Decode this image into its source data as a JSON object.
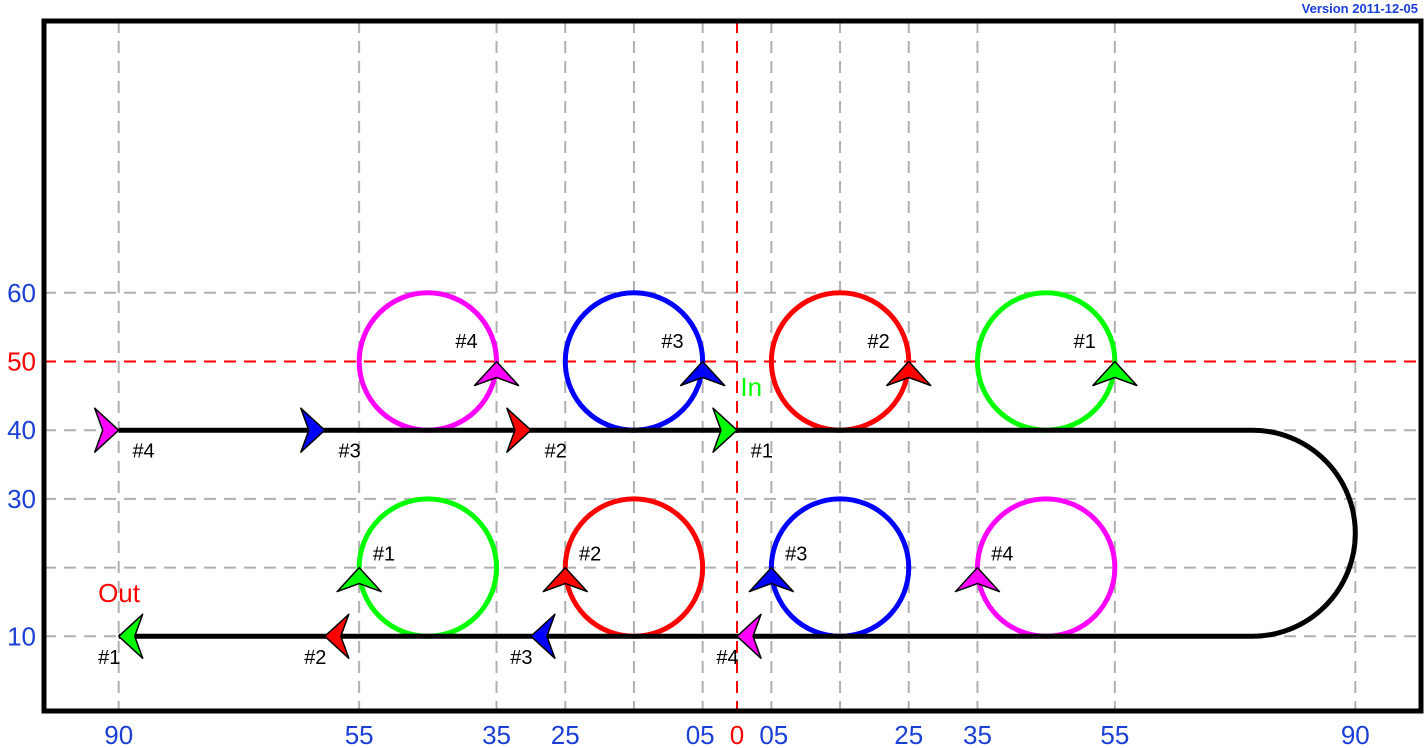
{
  "version_label": "Version 2011-12-05",
  "colors": {
    "axis_blue": "#1a3fd6",
    "red": "#ff0000",
    "green": "#00ff00",
    "blue": "#0000ff",
    "magenta": "#ff00ff",
    "grid": "#b0b0b0",
    "path": "#000000"
  },
  "x_ticks": [
    {
      "label": "90",
      "x": -90,
      "color": "axis_blue"
    },
    {
      "label": "55",
      "x": -55,
      "color": "axis_blue"
    },
    {
      "label": "35",
      "x": -35,
      "color": "axis_blue"
    },
    {
      "label": "25",
      "x": -25,
      "color": "axis_blue"
    },
    {
      "label": "05",
      "x": -5,
      "color": "axis_blue"
    },
    {
      "label": "0",
      "x": 0,
      "color": "red"
    },
    {
      "label": "05",
      "x": 5,
      "color": "axis_blue"
    },
    {
      "label": "25",
      "x": 25,
      "color": "axis_blue"
    },
    {
      "label": "35",
      "x": 35,
      "color": "axis_blue"
    },
    {
      "label": "55",
      "x": 55,
      "color": "axis_blue"
    },
    {
      "label": "90",
      "x": 90,
      "color": "axis_blue"
    }
  ],
  "y_ticks": [
    {
      "label": "60",
      "y": 60,
      "color": "axis_blue"
    },
    {
      "label": "50",
      "y": 50,
      "color": "red"
    },
    {
      "label": "40",
      "y": 40,
      "color": "axis_blue"
    },
    {
      "label": "30",
      "y": 30,
      "color": "axis_blue"
    },
    {
      "label": "10",
      "y": 10,
      "color": "axis_blue"
    }
  ],
  "extra_grid_x": [
    -15,
    15
  ],
  "extra_grid_y": [
    20
  ],
  "center_lines": {
    "x": 0,
    "y": 50
  },
  "path": {
    "upper_y": 40,
    "lower_y": 10,
    "x_start": -90,
    "turn_x": 75,
    "turn_center_y": 25,
    "turn_radius": 15
  },
  "circles": [
    {
      "cx": -45,
      "cy": 50,
      "r": 10,
      "color": "magenta"
    },
    {
      "cx": -15,
      "cy": 50,
      "r": 10,
      "color": "blue"
    },
    {
      "cx": 15,
      "cy": 50,
      "r": 10,
      "color": "red"
    },
    {
      "cx": 45,
      "cy": 50,
      "r": 10,
      "color": "green"
    },
    {
      "cx": -45,
      "cy": 20,
      "r": 10,
      "color": "green"
    },
    {
      "cx": -15,
      "cy": 20,
      "r": 10,
      "color": "red"
    },
    {
      "cx": 15,
      "cy": 20,
      "r": 10,
      "color": "blue"
    },
    {
      "cx": 45,
      "cy": 20,
      "r": 10,
      "color": "magenta"
    }
  ],
  "markers": [
    {
      "id": "upper-4",
      "x": -90,
      "y": 40,
      "dir": "right",
      "color": "magenta",
      "label": "#4",
      "lx": -88,
      "ly": 36
    },
    {
      "id": "upper-3",
      "x": -60,
      "y": 40,
      "dir": "right",
      "color": "blue",
      "label": "#3",
      "lx": -58,
      "ly": 36
    },
    {
      "id": "upper-2",
      "x": -30,
      "y": 40,
      "dir": "right",
      "color": "red",
      "label": "#2",
      "lx": -28,
      "ly": 36
    },
    {
      "id": "upper-1",
      "x": 0,
      "y": 40,
      "dir": "right",
      "color": "green",
      "label": "#1",
      "lx": 2,
      "ly": 36
    },
    {
      "id": "lower-1",
      "x": -90,
      "y": 10,
      "dir": "left",
      "color": "green",
      "label": "#1",
      "lx": -93,
      "ly": 6
    },
    {
      "id": "lower-2",
      "x": -60,
      "y": 10,
      "dir": "left",
      "color": "red",
      "label": "#2",
      "lx": -63,
      "ly": 6
    },
    {
      "id": "lower-3",
      "x": -30,
      "y": 10,
      "dir": "left",
      "color": "blue",
      "label": "#3",
      "lx": -33,
      "ly": 6
    },
    {
      "id": "lower-4",
      "x": 0,
      "y": 10,
      "dir": "left",
      "color": "magenta",
      "label": "#4",
      "lx": -3,
      "ly": 6
    },
    {
      "id": "circle-upper-4",
      "x": -35,
      "y": 50,
      "dir": "up",
      "color": "magenta",
      "label": "#4",
      "lx": -41,
      "ly": 52
    },
    {
      "id": "circle-upper-3",
      "x": -5,
      "y": 50,
      "dir": "up",
      "color": "blue",
      "label": "#3",
      "lx": -11,
      "ly": 52
    },
    {
      "id": "circle-upper-2",
      "x": 25,
      "y": 50,
      "dir": "up",
      "color": "red",
      "label": "#2",
      "lx": 19,
      "ly": 52
    },
    {
      "id": "circle-upper-1",
      "x": 55,
      "y": 50,
      "dir": "up",
      "color": "green",
      "label": "#1",
      "lx": 49,
      "ly": 52
    },
    {
      "id": "circle-lower-1",
      "x": -55,
      "y": 20,
      "dir": "up",
      "color": "green",
      "label": "#1",
      "lx": -53,
      "ly": 21
    },
    {
      "id": "circle-lower-2",
      "x": -25,
      "y": 20,
      "dir": "up",
      "color": "red",
      "label": "#2",
      "lx": -23,
      "ly": 21
    },
    {
      "id": "circle-lower-3",
      "x": 5,
      "y": 20,
      "dir": "up",
      "color": "blue",
      "label": "#3",
      "lx": 7,
      "ly": 21
    },
    {
      "id": "circle-lower-4",
      "x": 35,
      "y": 20,
      "dir": "up",
      "color": "magenta",
      "label": "#4",
      "lx": 37,
      "ly": 21
    }
  ],
  "annotations": [
    {
      "text": "In",
      "x": 0.5,
      "y": 45,
      "color": "green"
    },
    {
      "text": "Out",
      "x": -93,
      "y": 15,
      "color": "red"
    }
  ]
}
